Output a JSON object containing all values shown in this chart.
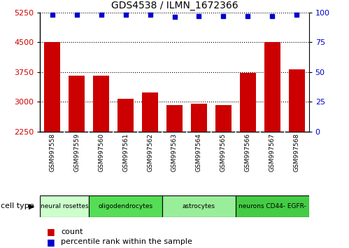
{
  "title": "GDS4538 / ILMN_1672366",
  "samples": [
    "GSM997558",
    "GSM997559",
    "GSM997560",
    "GSM997561",
    "GSM997562",
    "GSM997563",
    "GSM997564",
    "GSM997565",
    "GSM997566",
    "GSM997567",
    "GSM997568"
  ],
  "counts": [
    4500,
    3650,
    3650,
    3080,
    3230,
    2910,
    2950,
    2910,
    3730,
    4500,
    3820
  ],
  "percentiles": [
    98,
    98,
    98,
    98,
    98,
    96,
    97,
    97,
    97,
    97,
    98
  ],
  "ylim_left": [
    2250,
    5250
  ],
  "ylim_right": [
    0,
    100
  ],
  "yticks_left": [
    2250,
    3000,
    3750,
    4500,
    5250
  ],
  "yticks_right": [
    0,
    25,
    50,
    75,
    100
  ],
  "bar_color": "#cc0000",
  "dot_color": "#0000cc",
  "cell_types": [
    {
      "label": "neural rosettes",
      "start": 0,
      "end": 2,
      "color": "#ccffcc"
    },
    {
      "label": "oligodendrocytes",
      "start": 2,
      "end": 5,
      "color": "#55dd55"
    },
    {
      "label": "astrocytes",
      "start": 5,
      "end": 8,
      "color": "#99ee99"
    },
    {
      "label": "neurons CD44- EGFR-",
      "start": 8,
      "end": 11,
      "color": "#44cc44"
    }
  ],
  "cell_type_label": "cell type",
  "legend_count_color": "#cc0000",
  "legend_pct_color": "#0000cc",
  "background_color": "#ffffff",
  "label_bg_color": "#c8c8c8",
  "label_divider_color": "#ffffff"
}
